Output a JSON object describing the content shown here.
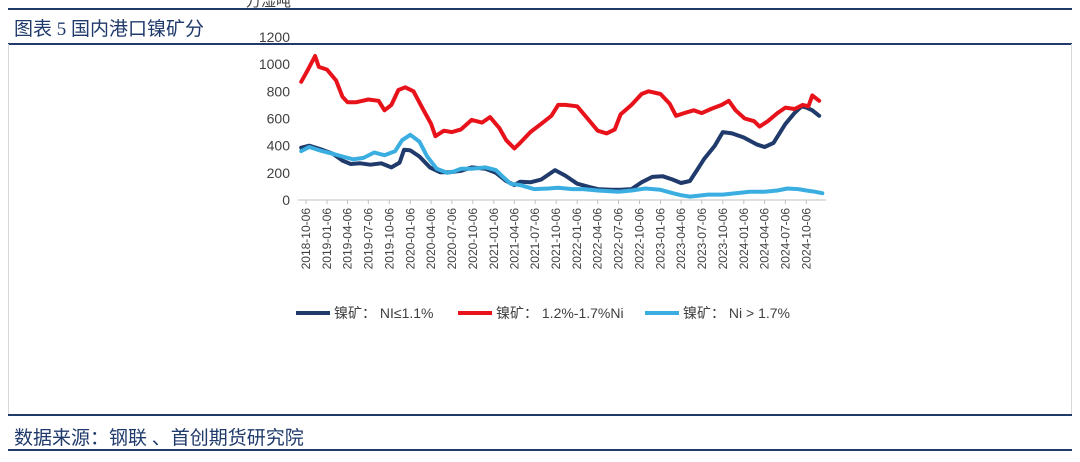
{
  "header": {
    "title": "图表 5 国内港口镍矿分",
    "unit": "万湿吨"
  },
  "footer": {
    "source": "数据来源：钢联 、首创期货研究院"
  },
  "chart_data": {
    "type": "line",
    "ylim": [
      0,
      1200
    ],
    "yticks": [
      0,
      200,
      400,
      600,
      800,
      1000,
      1200
    ],
    "xlim": [
      "2018-09-01",
      "2024-12-31"
    ],
    "xtick_labels": [
      "2018-10-06",
      "2019-01-06",
      "2019-04-06",
      "2019-07-06",
      "2019-10-06",
      "2020-01-06",
      "2020-04-06",
      "2020-07-06",
      "2020-10-06",
      "2021-01-06",
      "2021-04-06",
      "2021-07-06",
      "2021-10-06",
      "2022-01-06",
      "2022-04-06",
      "2022-07-06",
      "2022-10-06",
      "2023-01-06",
      "2023-04-06",
      "2023-07-06",
      "2023-10-06",
      "2024-01-06",
      "2024-04-06",
      "2024-07-06",
      "2024-10-06"
    ],
    "legend_position": "bottom",
    "grid": false,
    "series": [
      {
        "name": "镍矿： NI≤1.1%",
        "color": "#1f3a6b",
        "points": [
          [
            "2018-09-15",
            385
          ],
          [
            "2018-10-20",
            400
          ],
          [
            "2018-12-15",
            370
          ],
          [
            "2019-02-01",
            340
          ],
          [
            "2019-03-15",
            290
          ],
          [
            "2019-04-20",
            265
          ],
          [
            "2019-06-01",
            270
          ],
          [
            "2019-07-15",
            260
          ],
          [
            "2019-09-01",
            270
          ],
          [
            "2019-10-15",
            240
          ],
          [
            "2019-11-20",
            275
          ],
          [
            "2019-12-10",
            370
          ],
          [
            "2020-01-06",
            365
          ],
          [
            "2020-02-15",
            320
          ],
          [
            "2020-04-01",
            240
          ],
          [
            "2020-05-15",
            205
          ],
          [
            "2020-07-01",
            205
          ],
          [
            "2020-08-15",
            215
          ],
          [
            "2020-10-01",
            240
          ],
          [
            "2020-12-01",
            230
          ],
          [
            "2021-01-15",
            200
          ],
          [
            "2021-03-01",
            140
          ],
          [
            "2021-04-06",
            110
          ],
          [
            "2021-05-01",
            135
          ],
          [
            "2021-06-15",
            130
          ],
          [
            "2021-08-01",
            150
          ],
          [
            "2021-10-01",
            220
          ],
          [
            "2021-11-15",
            180
          ],
          [
            "2022-01-06",
            120
          ],
          [
            "2022-03-01",
            95
          ],
          [
            "2022-04-06",
            80
          ],
          [
            "2022-06-01",
            75
          ],
          [
            "2022-07-15",
            75
          ],
          [
            "2022-09-01",
            80
          ],
          [
            "2022-10-15",
            130
          ],
          [
            "2022-12-01",
            170
          ],
          [
            "2023-01-15",
            175
          ],
          [
            "2023-03-01",
            150
          ],
          [
            "2023-04-06",
            125
          ],
          [
            "2023-05-15",
            140
          ],
          [
            "2023-06-15",
            220
          ],
          [
            "2023-07-15",
            300
          ],
          [
            "2023-09-01",
            400
          ],
          [
            "2023-10-06",
            500
          ],
          [
            "2023-11-15",
            490
          ],
          [
            "2024-01-06",
            460
          ],
          [
            "2024-03-01",
            410
          ],
          [
            "2024-04-06",
            390
          ],
          [
            "2024-05-15",
            420
          ],
          [
            "2024-07-06",
            560
          ],
          [
            "2024-08-15",
            640
          ],
          [
            "2024-09-15",
            690
          ],
          [
            "2024-10-06",
            680
          ],
          [
            "2024-11-01",
            660
          ],
          [
            "2024-12-01",
            620
          ]
        ]
      },
      {
        "name": "镍矿： 1.2%-1.7%Ni",
        "color": "#e8121b",
        "points": [
          [
            "2018-09-15",
            870
          ],
          [
            "2018-10-15",
            960
          ],
          [
            "2018-11-15",
            1060
          ],
          [
            "2018-12-01",
            980
          ],
          [
            "2019-01-06",
            960
          ],
          [
            "2019-02-15",
            880
          ],
          [
            "2019-03-15",
            760
          ],
          [
            "2019-04-06",
            720
          ],
          [
            "2019-05-15",
            720
          ],
          [
            "2019-07-06",
            740
          ],
          [
            "2019-08-20",
            730
          ],
          [
            "2019-09-15",
            660
          ],
          [
            "2019-10-15",
            700
          ],
          [
            "2019-11-15",
            810
          ],
          [
            "2019-12-15",
            830
          ],
          [
            "2020-01-20",
            800
          ],
          [
            "2020-03-01",
            670
          ],
          [
            "2020-04-06",
            560
          ],
          [
            "2020-04-25",
            470
          ],
          [
            "2020-06-01",
            510
          ],
          [
            "2020-07-06",
            500
          ],
          [
            "2020-08-15",
            520
          ],
          [
            "2020-10-01",
            590
          ],
          [
            "2020-11-15",
            570
          ],
          [
            "2020-12-20",
            610
          ],
          [
            "2021-01-30",
            530
          ],
          [
            "2021-03-01",
            440
          ],
          [
            "2021-04-06",
            380
          ],
          [
            "2021-05-01",
            420
          ],
          [
            "2021-06-15",
            500
          ],
          [
            "2021-08-01",
            560
          ],
          [
            "2021-09-15",
            620
          ],
          [
            "2021-10-15",
            700
          ],
          [
            "2021-11-15",
            700
          ],
          [
            "2022-01-06",
            690
          ],
          [
            "2022-02-20",
            600
          ],
          [
            "2022-04-06",
            510
          ],
          [
            "2022-05-15",
            490
          ],
          [
            "2022-06-20",
            520
          ],
          [
            "2022-07-15",
            630
          ],
          [
            "2022-09-01",
            700
          ],
          [
            "2022-10-15",
            780
          ],
          [
            "2022-11-15",
            800
          ],
          [
            "2023-01-06",
            780
          ],
          [
            "2023-02-15",
            710
          ],
          [
            "2023-03-15",
            620
          ],
          [
            "2023-04-20",
            640
          ],
          [
            "2023-06-01",
            660
          ],
          [
            "2023-07-06",
            640
          ],
          [
            "2023-08-15",
            670
          ],
          [
            "2023-10-01",
            700
          ],
          [
            "2023-11-01",
            730
          ],
          [
            "2023-12-01",
            660
          ],
          [
            "2024-01-10",
            600
          ],
          [
            "2024-02-20",
            580
          ],
          [
            "2024-03-15",
            540
          ],
          [
            "2024-04-20",
            580
          ],
          [
            "2024-06-01",
            640
          ],
          [
            "2024-07-06",
            680
          ],
          [
            "2024-08-15",
            670
          ],
          [
            "2024-09-20",
            700
          ],
          [
            "2024-10-15",
            690
          ],
          [
            "2024-11-01",
            770
          ],
          [
            "2024-12-01",
            730
          ]
        ]
      },
      {
        "name": "镍矿： Ni > 1.7%",
        "color": "#3aaee0",
        "points": [
          [
            "2018-09-15",
            360
          ],
          [
            "2018-10-20",
            390
          ],
          [
            "2018-12-15",
            360
          ],
          [
            "2019-02-01",
            340
          ],
          [
            "2019-03-15",
            320
          ],
          [
            "2019-05-01",
            300
          ],
          [
            "2019-06-15",
            310
          ],
          [
            "2019-08-01",
            350
          ],
          [
            "2019-09-15",
            330
          ],
          [
            "2019-11-01",
            360
          ],
          [
            "2019-12-01",
            440
          ],
          [
            "2020-01-06",
            480
          ],
          [
            "2020-02-15",
            430
          ],
          [
            "2020-03-20",
            320
          ],
          [
            "2020-05-01",
            230
          ],
          [
            "2020-06-15",
            200
          ],
          [
            "2020-07-15",
            210
          ],
          [
            "2020-08-15",
            230
          ],
          [
            "2020-10-01",
            230
          ],
          [
            "2020-12-01",
            240
          ],
          [
            "2021-01-15",
            220
          ],
          [
            "2021-02-15",
            170
          ],
          [
            "2021-03-20",
            120
          ],
          [
            "2021-05-01",
            110
          ],
          [
            "2021-07-01",
            80
          ],
          [
            "2021-09-01",
            85
          ],
          [
            "2021-10-15",
            90
          ],
          [
            "2021-12-15",
            80
          ],
          [
            "2022-02-01",
            80
          ],
          [
            "2022-04-06",
            70
          ],
          [
            "2022-06-01",
            65
          ],
          [
            "2022-07-06",
            60
          ],
          [
            "2022-09-01",
            70
          ],
          [
            "2022-11-01",
            85
          ],
          [
            "2023-01-06",
            75
          ],
          [
            "2023-03-01",
            50
          ],
          [
            "2023-04-06",
            35
          ],
          [
            "2023-05-15",
            25
          ],
          [
            "2023-06-15",
            30
          ],
          [
            "2023-08-01",
            40
          ],
          [
            "2023-10-06",
            40
          ],
          [
            "2023-12-01",
            50
          ],
          [
            "2024-02-01",
            60
          ],
          [
            "2024-04-06",
            60
          ],
          [
            "2024-06-01",
            70
          ],
          [
            "2024-07-15",
            85
          ],
          [
            "2024-09-01",
            80
          ],
          [
            "2024-10-06",
            70
          ],
          [
            "2024-11-15",
            60
          ],
          [
            "2024-12-15",
            50
          ]
        ]
      }
    ]
  }
}
